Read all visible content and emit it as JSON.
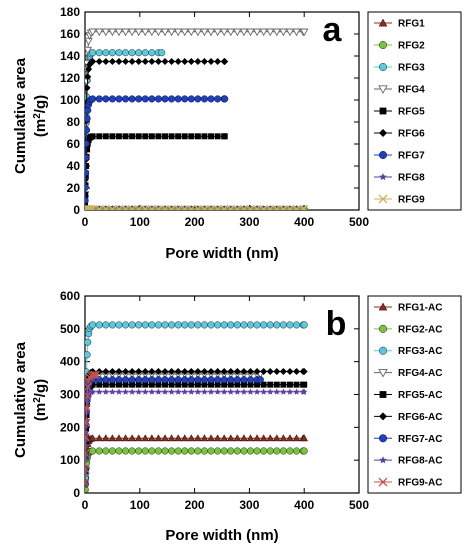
{
  "chart_data": [
    {
      "type": "scatter",
      "panel_label": "a",
      "xlabel": "Pore width (nm)",
      "ylabel": "Cumulative area (m²/g)",
      "ylabel_line1": "Cumulative area",
      "ylabel_line2_prefix": "(m",
      "ylabel_line2_sup": "2",
      "ylabel_line2_suffix": "/g)",
      "xlim": [
        0,
        500
      ],
      "ylim": [
        0,
        180
      ],
      "xticks": [
        "0",
        "100",
        "200",
        "300",
        "400",
        "500"
      ],
      "yticks": [
        "0",
        "20",
        "40",
        "60",
        "80",
        "100",
        "120",
        "140",
        "160",
        "180"
      ],
      "legend_position": "right",
      "series": [
        {
          "name": "RFG1",
          "marker": "triangle-up",
          "color": "#8b2a1f",
          "plateau": 0.8,
          "x_max": 400
        },
        {
          "name": "RFG2",
          "marker": "circle",
          "color": "#7cc242",
          "plateau": 0.6,
          "x_max": 400
        },
        {
          "name": "RFG3",
          "marker": "circle",
          "color": "#5bc8dc",
          "plateau": 143,
          "x_max": 140
        },
        {
          "name": "RFG4",
          "marker": "triangle-down-open",
          "color": "#666666",
          "plateau": 162,
          "x_max": 400
        },
        {
          "name": "RFG5",
          "marker": "square",
          "color": "#000000",
          "plateau": 67,
          "x_max": 255
        },
        {
          "name": "RFG6",
          "marker": "diamond",
          "color": "#000000",
          "plateau": 135,
          "x_max": 255
        },
        {
          "name": "RFG7",
          "marker": "circle",
          "color": "#1f3fbf",
          "plateau": 101,
          "x_max": 255
        },
        {
          "name": "RFG8",
          "marker": "star",
          "color": "#5a3fa0",
          "plateau": 1.2,
          "x_max": 400
        },
        {
          "name": "RFG9",
          "marker": "x",
          "color": "#c8b45a",
          "plateau": 1.0,
          "x_max": 400
        }
      ]
    },
    {
      "type": "scatter",
      "panel_label": "b",
      "xlabel": "Pore width (nm)",
      "ylabel": "Cumulative area (m²/g)",
      "ylabel_line1": "Cumulative area",
      "ylabel_line2_prefix": "(m",
      "ylabel_line2_sup": "2",
      "ylabel_line2_suffix": "/g)",
      "xlim": [
        0,
        500
      ],
      "ylim": [
        0,
        600
      ],
      "xticks": [
        "0",
        "100",
        "200",
        "300",
        "400",
        "500"
      ],
      "yticks": [
        "0",
        "100",
        "200",
        "300",
        "400",
        "500",
        "600"
      ],
      "legend_position": "right",
      "series": [
        {
          "name": "RFG1-AC",
          "marker": "triangle-up",
          "color": "#8b2a1f",
          "plateau": 167,
          "x_max": 400
        },
        {
          "name": "RFG2-AC",
          "marker": "circle",
          "color": "#7cc242",
          "plateau": 128,
          "x_max": 400
        },
        {
          "name": "RFG3-AC",
          "marker": "circle",
          "color": "#5bc8dc",
          "plateau": 512,
          "x_max": 400
        },
        {
          "name": "RFG4-AC",
          "marker": "triangle-down-open",
          "color": "#666666",
          "plateau": 362,
          "x_max": 320
        },
        {
          "name": "RFG5-AC",
          "marker": "square",
          "color": "#000000",
          "plateau": 330,
          "x_max": 400
        },
        {
          "name": "RFG6-AC",
          "marker": "diamond",
          "color": "#000000",
          "plateau": 370,
          "x_max": 400
        },
        {
          "name": "RFG7-AC",
          "marker": "circle",
          "color": "#1f3fbf",
          "plateau": 345,
          "x_max": 320
        },
        {
          "name": "RFG8-AC",
          "marker": "star",
          "color": "#5a3fa0",
          "plateau": 308,
          "x_max": 400
        },
        {
          "name": "RFG9-AC",
          "marker": "x",
          "color": "#c0504d",
          "plateau": 360,
          "x_max": 20
        }
      ]
    }
  ]
}
